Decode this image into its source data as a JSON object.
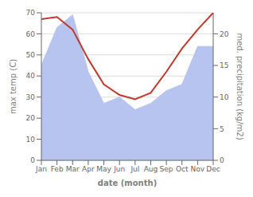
{
  "chart_data": {
    "type": "line",
    "categories": [
      "Jan",
      "Feb",
      "Mar",
      "Apr",
      "May",
      "Jun",
      "Jul",
      "Aug",
      "Sep",
      "Oct",
      "Nov",
      "Dec"
    ],
    "series": [
      {
        "type": "area",
        "axis": "y2",
        "color": "#b8c4f0",
        "values": [
          15,
          21,
          23,
          14,
          9,
          10,
          8,
          9,
          11,
          12,
          18,
          18
        ]
      },
      {
        "type": "line",
        "color": "#c0392b",
        "values": [
          67,
          68,
          62,
          48,
          36,
          31,
          29,
          32,
          42,
          53,
          62,
          70
        ]
      }
    ],
    "xlabel": "date (month)",
    "ylabel": "max temp (C)",
    "y2label": "med. precipitation (kg/m2)",
    "ylim": [
      0,
      70
    ],
    "yticks": [
      0,
      10,
      20,
      30,
      40,
      50,
      60,
      70
    ],
    "y2lim": [
      0,
      23.33
    ],
    "y2ticks": [
      0,
      5,
      10,
      15,
      20
    ],
    "grid": true
  }
}
